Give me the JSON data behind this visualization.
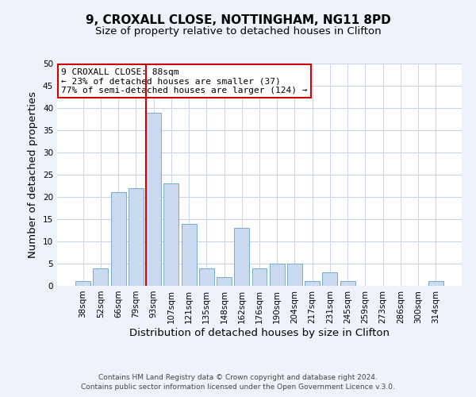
{
  "title": "9, CROXALL CLOSE, NOTTINGHAM, NG11 8PD",
  "subtitle": "Size of property relative to detached houses in Clifton",
  "xlabel": "Distribution of detached houses by size in Clifton",
  "ylabel": "Number of detached properties",
  "bar_labels": [
    "38sqm",
    "52sqm",
    "66sqm",
    "79sqm",
    "93sqm",
    "107sqm",
    "121sqm",
    "135sqm",
    "148sqm",
    "162sqm",
    "176sqm",
    "190sqm",
    "204sqm",
    "217sqm",
    "231sqm",
    "245sqm",
    "259sqm",
    "273sqm",
    "286sqm",
    "300sqm",
    "314sqm"
  ],
  "bar_heights": [
    1,
    4,
    21,
    22,
    39,
    23,
    14,
    4,
    2,
    13,
    4,
    5,
    5,
    1,
    3,
    1,
    0,
    0,
    0,
    0,
    1
  ],
  "bar_color": "#c9d9f0",
  "bar_edge_color": "#7aaad0",
  "ylim": [
    0,
    50
  ],
  "yticks": [
    0,
    5,
    10,
    15,
    20,
    25,
    30,
    35,
    40,
    45,
    50
  ],
  "vline_index": 4,
  "bar_width": 0.85,
  "vline_color": "#cc0000",
  "annotation_title": "9 CROXALL CLOSE: 88sqm",
  "annotation_line1": "← 23% of detached houses are smaller (37)",
  "annotation_line2": "77% of semi-detached houses are larger (124) →",
  "annotation_box_color": "#ffffff",
  "annotation_box_edge": "#cc0000",
  "footer1": "Contains HM Land Registry data © Crown copyright and database right 2024.",
  "footer2": "Contains public sector information licensed under the Open Government Licence v.3.0.",
  "background_color": "#eef2fa",
  "plot_background_color": "#ffffff",
  "grid_color": "#c8d4e8",
  "title_fontsize": 11,
  "subtitle_fontsize": 9.5,
  "tick_fontsize": 7.5,
  "axis_label_fontsize": 9.5,
  "footer_fontsize": 6.5
}
